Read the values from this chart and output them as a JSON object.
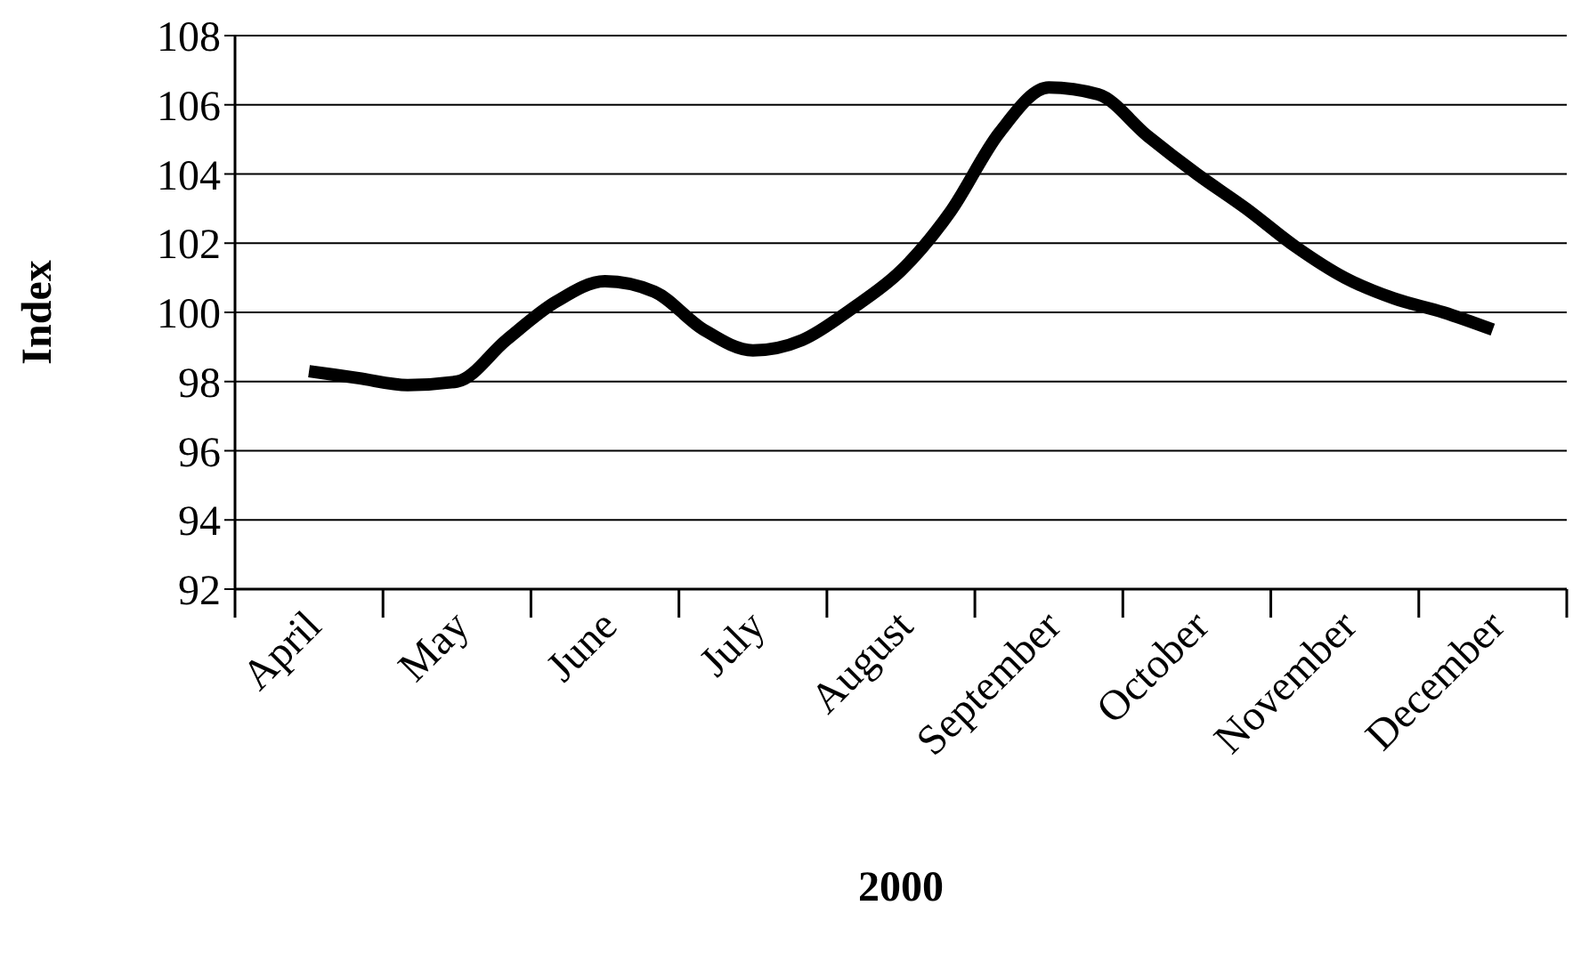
{
  "chart_data": {
    "type": "line",
    "xlabel": "2000",
    "ylabel": "Index",
    "categories": [
      "April",
      null,
      null,
      "May",
      null,
      null,
      "June",
      null,
      null,
      "July",
      null,
      null,
      "August",
      null,
      null,
      "September",
      null,
      null,
      "October",
      null,
      null,
      "November",
      null,
      null,
      "December"
    ],
    "values": [
      98.3,
      98.1,
      97.9,
      98.0,
      99.2,
      100.3,
      100.9,
      100.6,
      99.5,
      98.9,
      99.2,
      100.1,
      101.2,
      102.9,
      105.2,
      106.5,
      106.3,
      105.1,
      104.0,
      103.0,
      101.9,
      101.0,
      100.4,
      100.0,
      99.5
    ],
    "color": "#000000",
    "marker": "none",
    "line_style": "solid",
    "ylim": [
      92,
      108
    ],
    "yticks": [
      92,
      94,
      96,
      98,
      100,
      102,
      104,
      106,
      108
    ],
    "grid": "y"
  }
}
